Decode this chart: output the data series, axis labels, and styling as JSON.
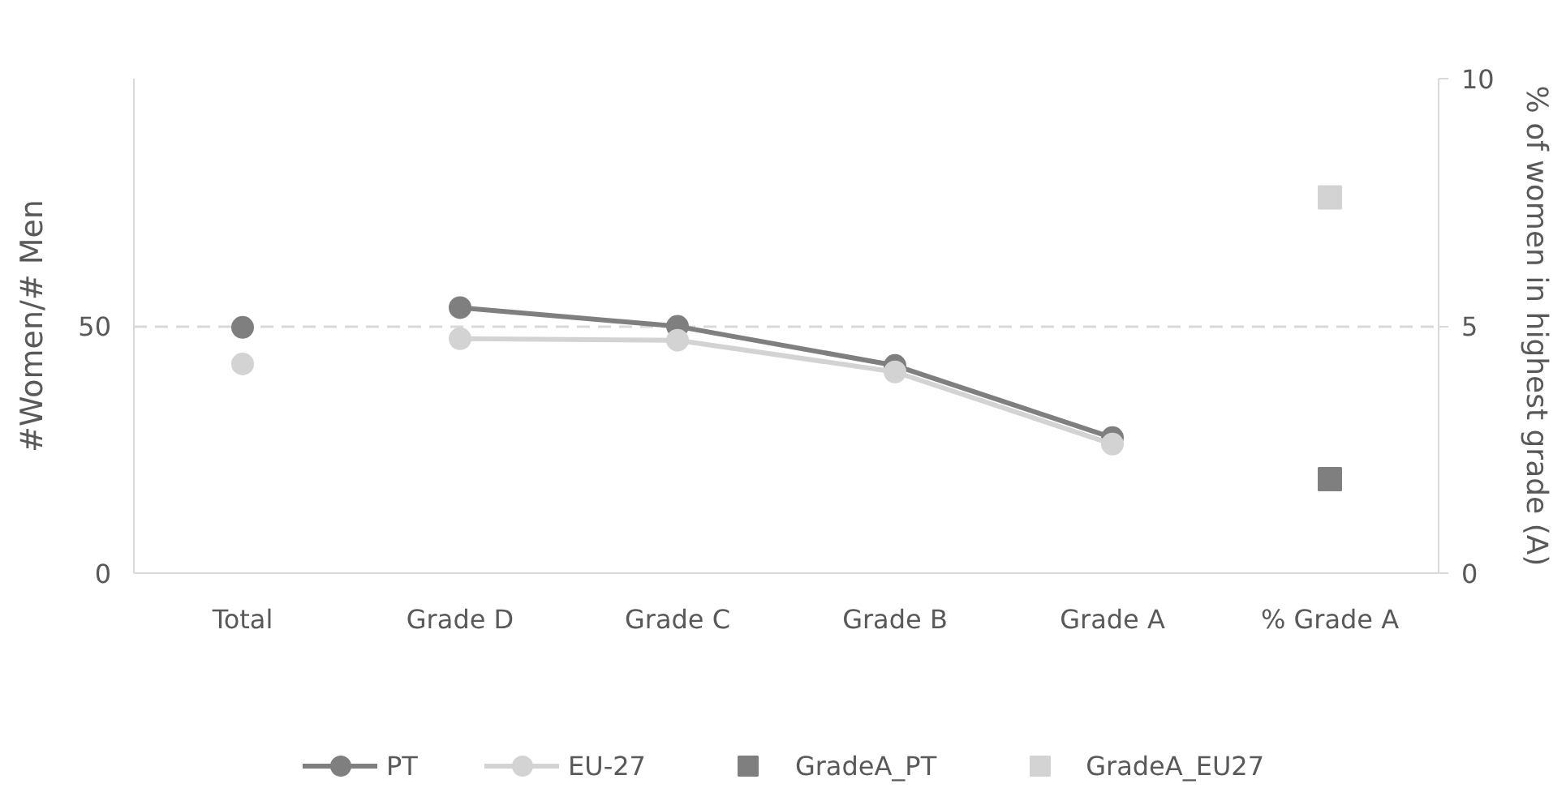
{
  "chart_data": {
    "type": "line",
    "categories": [
      "Total",
      "Grade D",
      "Grade C",
      "Grade B",
      "Grade A",
      "% Grade A"
    ],
    "ylabel": "#Women/# Men",
    "y2label": "% of women in highest grade (A)",
    "ylim": [
      0,
      100
    ],
    "yticks": [
      0,
      50
    ],
    "y2lim": [
      0,
      10
    ],
    "y2ticks": [
      0,
      5,
      10
    ],
    "grid": "y",
    "legend": "bottom",
    "marker": "circle",
    "series": [
      {
        "name": "PT",
        "color": "#7f7f7f",
        "values": [
          null,
          53.7,
          49.9,
          42.0,
          27.4,
          null
        ]
      },
      {
        "name": "EU-27",
        "color": "#d3d3d3",
        "values": [
          null,
          47.4,
          47.1,
          40.7,
          26.1,
          null
        ]
      },
      {
        "type": "scatter",
        "color": "#7f7f7f",
        "values": [
          49.7,
          null,
          null,
          null,
          null,
          null
        ]
      },
      {
        "type": "scatter",
        "color": "#d3d3d3",
        "values": [
          42.3,
          null,
          null,
          null,
          null,
          null
        ]
      },
      {
        "name": "GradeA_PT",
        "type": "scatter",
        "axis": "y2",
        "marker": "square",
        "color": "#7f7f7f",
        "values": [
          null,
          null,
          null,
          null,
          null,
          1.9
        ]
      },
      {
        "name": "GradeA_EU27",
        "type": "scatter",
        "axis": "y2",
        "marker": "square",
        "color": "#d3d3d3",
        "values": [
          null,
          null,
          null,
          null,
          null,
          7.6
        ]
      }
    ]
  }
}
